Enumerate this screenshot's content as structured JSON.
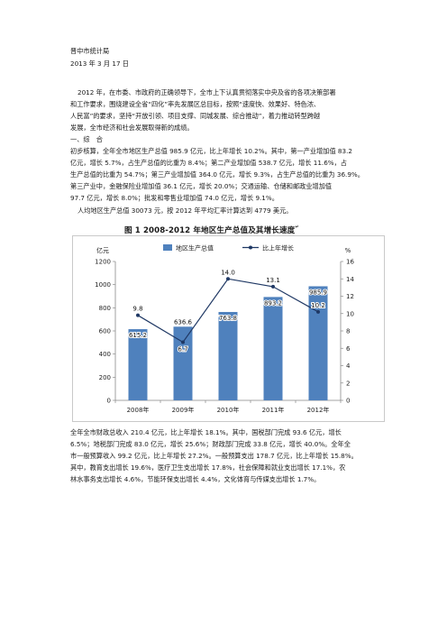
{
  "header": {
    "org": "晋中市统计局",
    "date": "2013 年 3 月 17 日"
  },
  "intro_lines": [
    "2012 年，在市委、市政府的正确领导下，全市上下认真贯彻落实中央及省的各项决策部署",
    "和工作要求，围绕建设全省“四化”率先发展区总目标，按照“速度快、效果好、特色浓、",
    "人民富”的要求，坚持“开放引领、项目支撑、同城发展、综合推动”，着力推动转型跨越",
    "发展，全市经济和社会发展取得新的成绩。"
  ],
  "section_heading": "一、综　合",
  "para1_lines": [
    "初步核算，全年全市地区生产总值 985.9 亿元，比上年增长 10.2%。其中，第一产业增加值 83.2",
    "亿元，增长 5.7%，占生产总值的比重为 8.4%；第二产业增加值 538.7 亿元，增长 11.6%，占",
    "生产总值的比重为 54.7%；第三产业增加值 364.0 亿元，增长 9.3%，占生产总值的比重为 36.9%。",
    "第三产业中，金融保险业增加值 36.1 亿元，增长 20.0%；交通运输、仓储和邮政业增加值",
    "97.7 亿元，增长 8.0%；批发和零售业增加值 74.0 亿元，增长 9.1%。"
  ],
  "para2": "人均地区生产总值 30073 元，按 2012 年平均汇率计算达到 4779 美元。",
  "figure_title": "图 1  2008-2012 年地区生产总值及其增长速度",
  "figure_title_mark": "↵",
  "chart_data": {
    "type": "bar",
    "categories": [
      "2008年",
      "2009年",
      "2010年",
      "2011年",
      "2012年"
    ],
    "series": [
      {
        "name": "地区生产总值",
        "type": "bar",
        "axis": "left",
        "values": [
          615.2,
          636.6,
          763.8,
          893.2,
          985.9
        ],
        "labels": [
          "615.2",
          "636.6",
          "763.8",
          "893.2",
          "985.9"
        ]
      },
      {
        "name": "比上年增长",
        "type": "line",
        "axis": "right",
        "values": [
          9.8,
          6.7,
          14.0,
          13.1,
          10.2
        ],
        "labels": [
          "9.8",
          "6.7",
          "14.0",
          "13.1",
          "10.2"
        ]
      }
    ],
    "y_left": {
      "unit": "亿元",
      "ylim": [
        0,
        1200
      ],
      "ticks": [
        "0",
        "200",
        "400",
        "600",
        "800",
        "1000",
        "1200"
      ]
    },
    "y_right": {
      "unit": "%",
      "ylim": [
        0,
        16
      ],
      "ticks": [
        "0",
        "2",
        "4",
        "6",
        "8",
        "10",
        "12",
        "14",
        "16"
      ]
    },
    "legend_position": "top",
    "grid": false,
    "colors": {
      "bar": "#4f81bd",
      "line": "#1f3864"
    }
  },
  "para3_lines": [
    "全年全市财政总收入 210.4 亿元，比上年增长 18.1%。其中，国税部门完成 93.6 亿元，增长",
    "6.5%；地税部门完成 83.0 亿元，增长 25.6%；财政部门完成 33.8 亿元，增长 40.0%。全年全",
    "市一般预算收入 99.2 亿元，比上年增长 27.2%。一般预算支出 178.7 亿元，比上年增长 15.8%。",
    "其中，教育支出增长 19.6%，医疗卫生支出增长 17.8%，社会保障和就业支出增长 17.1%，农",
    "林水事务支出增长 4.6%，节能环保支出增长 4.4%，文化体育与传媒支出增长 1.7%。"
  ]
}
